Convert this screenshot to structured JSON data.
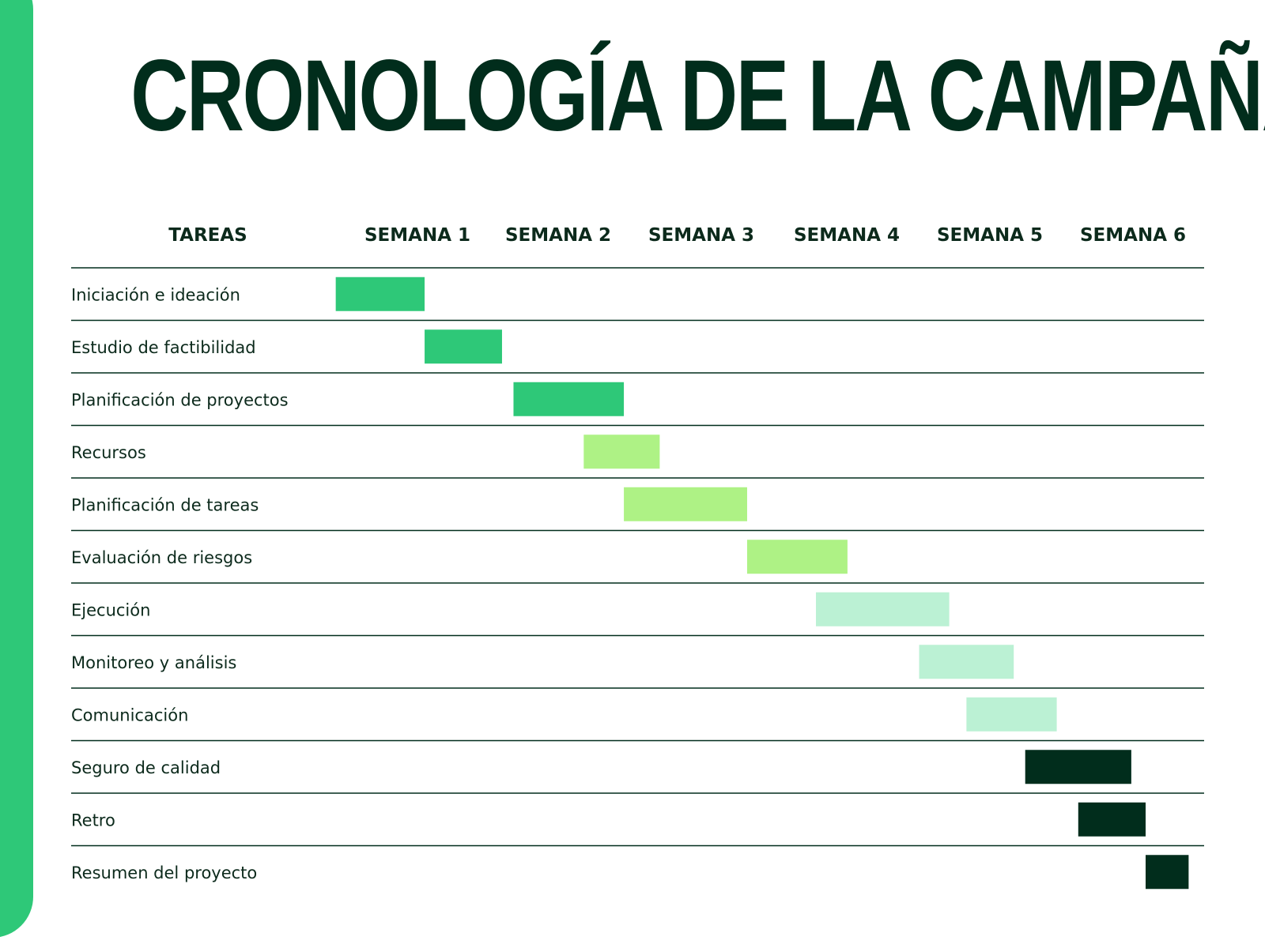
{
  "title": "CRONOLOGÍA DE LA CAMPAÑA",
  "colors": {
    "accent": "#2ec878",
    "dark": "#012d1c",
    "text": "#0c2a1c",
    "phase_1": "#2ec878",
    "phase_2": "#aef285",
    "phase_3": "#bbf1d4",
    "phase_4": "#012d1c"
  },
  "chart_data": {
    "type": "gantt",
    "title": "CRONOLOGÍA DE LA CAMPAÑA",
    "task_header": "TAREAS",
    "weeks": [
      "SEMANA 1",
      "SEMANA 2",
      "SEMANA 3",
      "SEMANA 4",
      "SEMANA 5",
      "SEMANA 6"
    ],
    "x_unit": "semana",
    "xlim": [
      0.5,
      6.5
    ],
    "grid": "horizontal row separators",
    "tasks": [
      {
        "name": "Iniciación e ideación",
        "start": 0.43,
        "end": 1.05,
        "color": "#2ec878"
      },
      {
        "name": "Estudio de factibilidad",
        "start": 1.05,
        "end": 1.59,
        "color": "#2ec878"
      },
      {
        "name": "Planificación de proyectos",
        "start": 1.67,
        "end": 2.44,
        "color": "#2ec878"
      },
      {
        "name": "Recursos",
        "start": 2.16,
        "end": 2.69,
        "color": "#aef285"
      },
      {
        "name": "Planificación de tareas",
        "start": 2.44,
        "end": 3.3,
        "color": "#aef285"
      },
      {
        "name": "Evaluación de riesgos",
        "start": 3.3,
        "end": 4.0,
        "color": "#aef285"
      },
      {
        "name": "Ejecución",
        "start": 3.78,
        "end": 4.71,
        "color": "#bbf1d4"
      },
      {
        "name": "Monitoreo y análisis",
        "start": 4.5,
        "end": 5.16,
        "color": "#bbf1d4"
      },
      {
        "name": "Comunicación",
        "start": 4.83,
        "end": 5.46,
        "color": "#bbf1d4"
      },
      {
        "name": "Seguro de calidad",
        "start": 5.24,
        "end": 5.98,
        "color": "#012d1c"
      },
      {
        "name": "Retro",
        "start": 5.61,
        "end": 6.08,
        "color": "#012d1c"
      },
      {
        "name": "Resumen del proyecto",
        "start": 6.08,
        "end": 6.38,
        "color": "#012d1c"
      }
    ]
  }
}
